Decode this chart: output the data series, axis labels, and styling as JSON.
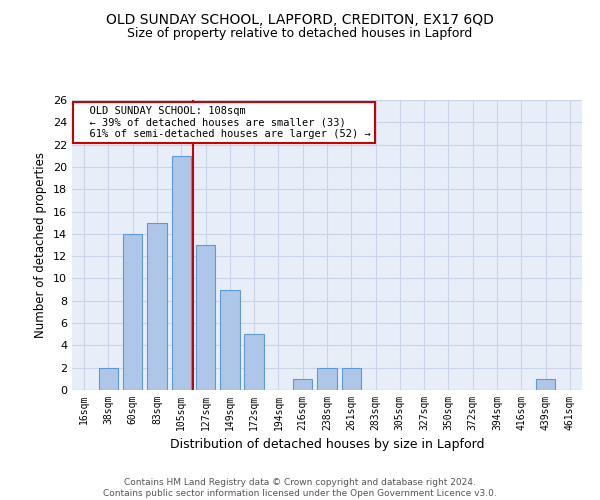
{
  "title1": "OLD SUNDAY SCHOOL, LAPFORD, CREDITON, EX17 6QD",
  "title2": "Size of property relative to detached houses in Lapford",
  "xlabel": "Distribution of detached houses by size in Lapford",
  "ylabel": "Number of detached properties",
  "footer1": "Contains HM Land Registry data © Crown copyright and database right 2024.",
  "footer2": "Contains public sector information licensed under the Open Government Licence v3.0.",
  "bins": [
    "16sqm",
    "38sqm",
    "60sqm",
    "83sqm",
    "105sqm",
    "127sqm",
    "149sqm",
    "172sqm",
    "194sqm",
    "216sqm",
    "238sqm",
    "261sqm",
    "283sqm",
    "305sqm",
    "327sqm",
    "350sqm",
    "372sqm",
    "394sqm",
    "416sqm",
    "439sqm",
    "461sqm"
  ],
  "values": [
    0,
    2,
    14,
    15,
    21,
    13,
    9,
    5,
    0,
    1,
    2,
    2,
    0,
    0,
    0,
    0,
    0,
    0,
    0,
    1,
    0
  ],
  "bar_color": "#aec6e8",
  "bar_edge_color": "#5b9bd5",
  "highlight_bar_index": 4,
  "highlight_line_color": "#cc0000",
  "property_size": 108,
  "pct_smaller": 39,
  "count_smaller": 33,
  "pct_larger_semi": 61,
  "count_larger_semi": 52,
  "ylim": [
    0,
    26
  ],
  "yticks": [
    0,
    2,
    4,
    6,
    8,
    10,
    12,
    14,
    16,
    18,
    20,
    22,
    24,
    26
  ],
  "grid_color": "#c8d4e8",
  "background_color": "#e8eef8"
}
